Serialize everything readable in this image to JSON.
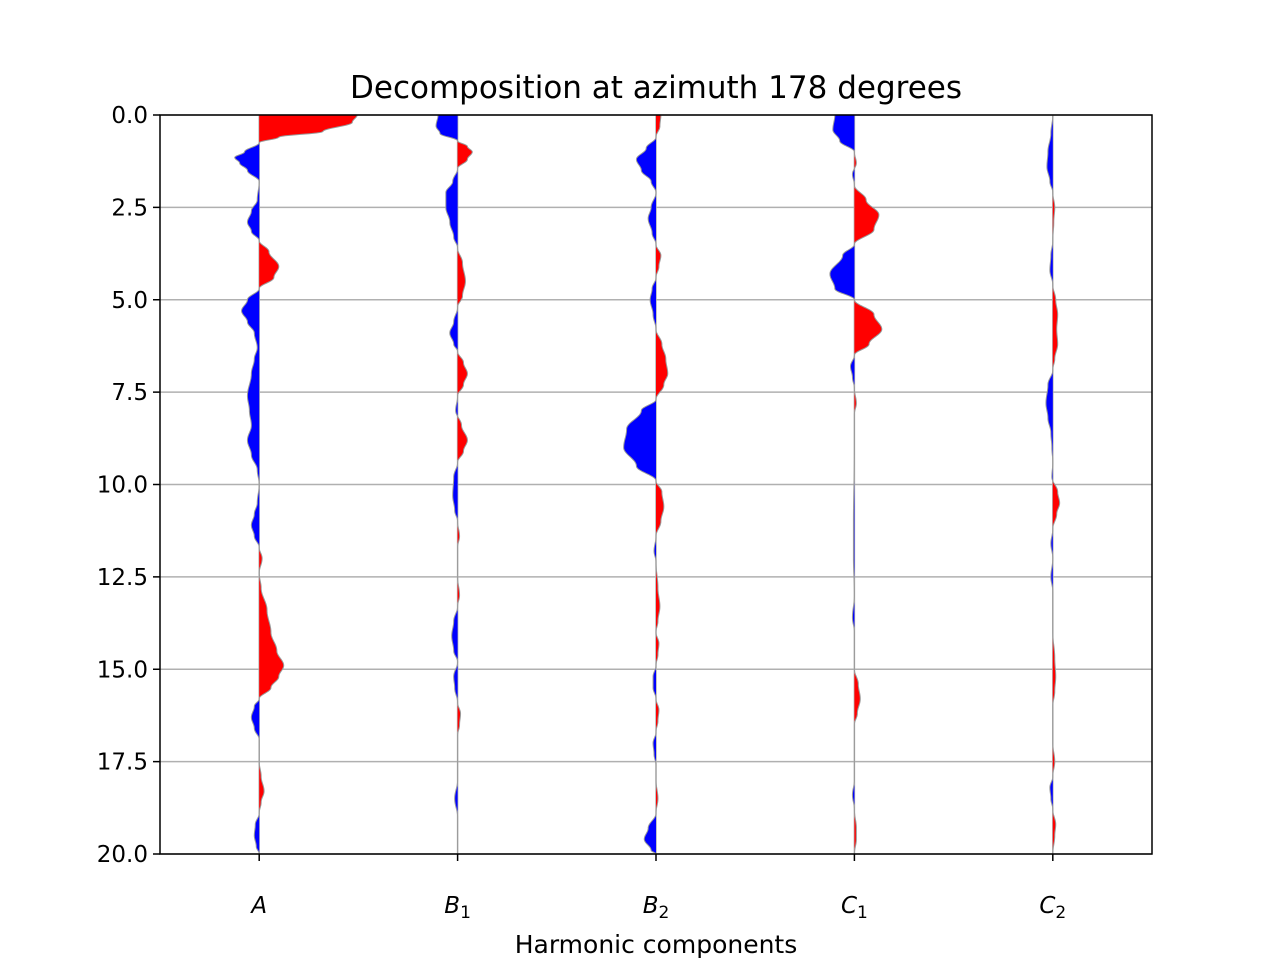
{
  "chart_data": {
    "type": "area",
    "title": "Decomposition at azimuth 178 degrees",
    "xlabel": "Harmonic components",
    "ylabel": "",
    "ylim": [
      0,
      20
    ],
    "y_inverted": true,
    "yticks": [
      "0.0",
      "2.5",
      "5.0",
      "7.5",
      "10.0",
      "12.5",
      "15.0",
      "17.5",
      "20.0"
    ],
    "grid": true,
    "fill_colors": {
      "positive": "#ff0000",
      "negative": "#0000ff"
    },
    "grid_color": "#b0b0b0",
    "components": [
      {
        "label": "A",
        "base": "A",
        "sub": "",
        "signal": [
          [
            0.0,
            1.0
          ],
          [
            0.2,
            0.95
          ],
          [
            0.45,
            0.65
          ],
          [
            0.6,
            0.2
          ],
          [
            0.75,
            0.0
          ],
          [
            1.0,
            -0.15
          ],
          [
            1.15,
            -0.25
          ],
          [
            1.3,
            -0.2
          ],
          [
            1.5,
            -0.12
          ],
          [
            1.8,
            0.0
          ],
          [
            2.3,
            -0.02
          ],
          [
            2.6,
            -0.08
          ],
          [
            2.9,
            -0.12
          ],
          [
            3.15,
            -0.08
          ],
          [
            3.4,
            0.0
          ],
          [
            3.7,
            0.1
          ],
          [
            4.1,
            0.2
          ],
          [
            4.4,
            0.15
          ],
          [
            4.7,
            0.0
          ],
          [
            5.0,
            -0.12
          ],
          [
            5.3,
            -0.18
          ],
          [
            5.6,
            -0.12
          ],
          [
            5.9,
            -0.05
          ],
          [
            6.3,
            -0.02
          ],
          [
            6.6,
            -0.05
          ],
          [
            7.0,
            -0.08
          ],
          [
            7.6,
            -0.12
          ],
          [
            8.0,
            -0.1
          ],
          [
            8.4,
            -0.08
          ],
          [
            8.8,
            -0.12
          ],
          [
            9.2,
            -0.08
          ],
          [
            9.6,
            -0.02
          ],
          [
            10.0,
            0.0
          ],
          [
            10.5,
            -0.02
          ],
          [
            10.8,
            -0.05
          ],
          [
            11.1,
            -0.08
          ],
          [
            11.4,
            -0.05
          ],
          [
            11.7,
            0.0
          ],
          [
            12.0,
            0.03
          ],
          [
            12.4,
            0.0
          ],
          [
            12.8,
            0.02
          ],
          [
            13.4,
            0.08
          ],
          [
            14.0,
            0.12
          ],
          [
            14.5,
            0.18
          ],
          [
            14.9,
            0.25
          ],
          [
            15.2,
            0.2
          ],
          [
            15.5,
            0.12
          ],
          [
            15.8,
            0.0
          ],
          [
            16.0,
            -0.05
          ],
          [
            16.3,
            -0.08
          ],
          [
            16.6,
            -0.05
          ],
          [
            16.9,
            0.0
          ],
          [
            17.5,
            0.0
          ],
          [
            17.9,
            0.02
          ],
          [
            18.3,
            0.05
          ],
          [
            18.6,
            0.02
          ],
          [
            18.9,
            0.0
          ],
          [
            19.2,
            -0.04
          ],
          [
            19.5,
            -0.05
          ],
          [
            19.8,
            -0.03
          ],
          [
            20.0,
            0.0
          ]
        ]
      },
      {
        "label": "B1",
        "base": "B",
        "sub": "1",
        "signal": [
          [
            0.0,
            -0.2
          ],
          [
            0.3,
            -0.22
          ],
          [
            0.5,
            -0.18
          ],
          [
            0.7,
            0.0
          ],
          [
            0.85,
            0.1
          ],
          [
            1.0,
            0.15
          ],
          [
            1.2,
            0.1
          ],
          [
            1.45,
            0.0
          ],
          [
            1.8,
            -0.05
          ],
          [
            2.1,
            -0.12
          ],
          [
            2.5,
            -0.12
          ],
          [
            2.9,
            -0.08
          ],
          [
            3.3,
            -0.04
          ],
          [
            3.6,
            0.0
          ],
          [
            4.0,
            0.05
          ],
          [
            4.5,
            0.08
          ],
          [
            4.9,
            0.05
          ],
          [
            5.2,
            0.0
          ],
          [
            5.6,
            -0.04
          ],
          [
            5.9,
            -0.08
          ],
          [
            6.2,
            -0.04
          ],
          [
            6.4,
            0.0
          ],
          [
            6.7,
            0.06
          ],
          [
            7.0,
            0.1
          ],
          [
            7.3,
            0.06
          ],
          [
            7.6,
            0.0
          ],
          [
            8.0,
            -0.02
          ],
          [
            8.4,
            0.04
          ],
          [
            8.8,
            0.1
          ],
          [
            9.1,
            0.06
          ],
          [
            9.4,
            0.0
          ],
          [
            9.8,
            -0.04
          ],
          [
            10.3,
            -0.05
          ],
          [
            10.7,
            -0.03
          ],
          [
            11.0,
            0.0
          ],
          [
            11.4,
            0.02
          ],
          [
            11.7,
            0.0
          ],
          [
            12.5,
            0.0
          ],
          [
            13.0,
            0.02
          ],
          [
            13.3,
            0.0
          ],
          [
            13.7,
            -0.04
          ],
          [
            14.1,
            -0.06
          ],
          [
            14.5,
            -0.04
          ],
          [
            14.8,
            0.0
          ],
          [
            15.2,
            -0.04
          ],
          [
            15.5,
            -0.03
          ],
          [
            15.9,
            0.0
          ],
          [
            16.2,
            0.03
          ],
          [
            16.5,
            0.02
          ],
          [
            16.8,
            0.0
          ],
          [
            18.0,
            0.0
          ],
          [
            18.5,
            -0.03
          ],
          [
            19.0,
            0.0
          ],
          [
            20.0,
            0.0
          ]
        ]
      },
      {
        "label": "B2",
        "base": "B",
        "sub": "2",
        "signal": [
          [
            0.0,
            0.05
          ],
          [
            0.3,
            0.04
          ],
          [
            0.6,
            0.0
          ],
          [
            0.9,
            -0.1
          ],
          [
            1.2,
            -0.2
          ],
          [
            1.5,
            -0.15
          ],
          [
            1.8,
            -0.05
          ],
          [
            2.1,
            0.0
          ],
          [
            2.5,
            -0.05
          ],
          [
            2.8,
            -0.08
          ],
          [
            3.2,
            -0.04
          ],
          [
            3.5,
            0.0
          ],
          [
            3.8,
            0.05
          ],
          [
            4.1,
            0.03
          ],
          [
            4.4,
            0.0
          ],
          [
            4.7,
            -0.04
          ],
          [
            5.0,
            -0.06
          ],
          [
            5.4,
            -0.03
          ],
          [
            5.8,
            0.0
          ],
          [
            6.2,
            0.06
          ],
          [
            6.6,
            0.1
          ],
          [
            7.0,
            0.12
          ],
          [
            7.3,
            0.08
          ],
          [
            7.7,
            0.0
          ],
          [
            8.0,
            -0.15
          ],
          [
            8.5,
            -0.3
          ],
          [
            9.0,
            -0.33
          ],
          [
            9.5,
            -0.2
          ],
          [
            9.9,
            0.0
          ],
          [
            10.2,
            0.06
          ],
          [
            10.6,
            0.08
          ],
          [
            11.0,
            0.05
          ],
          [
            11.4,
            0.0
          ],
          [
            11.8,
            -0.02
          ],
          [
            12.1,
            0.0
          ],
          [
            12.8,
            0.02
          ],
          [
            13.3,
            0.04
          ],
          [
            13.7,
            0.02
          ],
          [
            14.0,
            0.0
          ],
          [
            14.3,
            0.03
          ],
          [
            14.6,
            0.02
          ],
          [
            14.9,
            0.0
          ],
          [
            15.2,
            -0.03
          ],
          [
            15.5,
            -0.03
          ],
          [
            15.8,
            0.0
          ],
          [
            16.1,
            0.03
          ],
          [
            16.4,
            0.02
          ],
          [
            16.7,
            0.0
          ],
          [
            17.0,
            -0.03
          ],
          [
            17.3,
            -0.02
          ],
          [
            17.6,
            0.0
          ],
          [
            18.0,
            0.0
          ],
          [
            18.5,
            0.02
          ],
          [
            18.9,
            0.0
          ],
          [
            19.3,
            -0.08
          ],
          [
            19.6,
            -0.12
          ],
          [
            19.9,
            -0.05
          ],
          [
            20.0,
            0.0
          ]
        ]
      },
      {
        "label": "C1",
        "base": "C",
        "sub": "1",
        "signal": [
          [
            0.0,
            -0.2
          ],
          [
            0.4,
            -0.22
          ],
          [
            0.7,
            -0.15
          ],
          [
            1.0,
            0.0
          ],
          [
            1.3,
            0.02
          ],
          [
            1.6,
            -0.02
          ],
          [
            1.9,
            0.0
          ],
          [
            2.3,
            0.12
          ],
          [
            2.7,
            0.25
          ],
          [
            3.1,
            0.2
          ],
          [
            3.5,
            0.0
          ],
          [
            3.8,
            -0.12
          ],
          [
            4.3,
            -0.25
          ],
          [
            4.7,
            -0.2
          ],
          [
            5.0,
            0.0
          ],
          [
            5.4,
            0.2
          ],
          [
            5.8,
            0.28
          ],
          [
            6.2,
            0.15
          ],
          [
            6.5,
            0.0
          ],
          [
            6.8,
            -0.04
          ],
          [
            7.1,
            -0.02
          ],
          [
            7.4,
            0.0
          ],
          [
            7.8,
            0.02
          ],
          [
            8.1,
            0.0
          ],
          [
            9.0,
            0.0
          ],
          [
            11.0,
            -0.01
          ],
          [
            12.0,
            -0.01
          ],
          [
            13.0,
            0.0
          ],
          [
            13.6,
            -0.02
          ],
          [
            14.0,
            0.0
          ],
          [
            15.0,
            0.0
          ],
          [
            15.4,
            0.04
          ],
          [
            15.8,
            0.06
          ],
          [
            16.2,
            0.03
          ],
          [
            16.5,
            0.0
          ],
          [
            18.0,
            0.0
          ],
          [
            18.4,
            -0.02
          ],
          [
            18.8,
            0.0
          ],
          [
            19.3,
            0.02
          ],
          [
            19.6,
            0.02
          ],
          [
            20.0,
            0.0
          ]
        ]
      },
      {
        "label": "C2",
        "base": "C",
        "sub": "2",
        "signal": [
          [
            0.0,
            0.0
          ],
          [
            0.5,
            -0.02
          ],
          [
            1.0,
            -0.05
          ],
          [
            1.4,
            -0.06
          ],
          [
            1.8,
            -0.03
          ],
          [
            2.1,
            0.0
          ],
          [
            2.5,
            0.02
          ],
          [
            2.9,
            0.01
          ],
          [
            3.4,
            0.0
          ],
          [
            3.8,
            -0.02
          ],
          [
            4.2,
            -0.03
          ],
          [
            4.6,
            0.0
          ],
          [
            5.0,
            0.03
          ],
          [
            5.4,
            0.05
          ],
          [
            5.8,
            0.04
          ],
          [
            6.2,
            0.05
          ],
          [
            6.6,
            0.02
          ],
          [
            6.9,
            0.0
          ],
          [
            7.3,
            -0.05
          ],
          [
            7.8,
            -0.07
          ],
          [
            8.2,
            -0.05
          ],
          [
            8.6,
            -0.02
          ],
          [
            9.0,
            -0.01
          ],
          [
            9.4,
            0.0
          ],
          [
            9.8,
            -0.01
          ],
          [
            10.2,
            0.05
          ],
          [
            10.5,
            0.07
          ],
          [
            10.8,
            0.04
          ],
          [
            11.2,
            0.0
          ],
          [
            11.6,
            -0.02
          ],
          [
            12.0,
            0.0
          ],
          [
            12.5,
            -0.02
          ],
          [
            12.9,
            0.0
          ],
          [
            13.5,
            0.0
          ],
          [
            14.0,
            0.0
          ],
          [
            14.7,
            0.02
          ],
          [
            15.2,
            0.03
          ],
          [
            15.6,
            0.02
          ],
          [
            16.0,
            0.0
          ],
          [
            17.0,
            0.0
          ],
          [
            17.5,
            0.02
          ],
          [
            17.9,
            0.0
          ],
          [
            18.2,
            -0.03
          ],
          [
            18.5,
            -0.02
          ],
          [
            18.8,
            0.0
          ],
          [
            19.2,
            0.03
          ],
          [
            19.5,
            0.02
          ],
          [
            20.0,
            0.0
          ]
        ]
      }
    ]
  }
}
